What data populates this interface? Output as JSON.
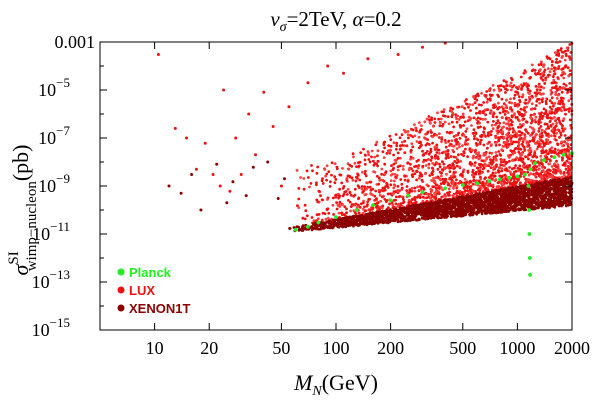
{
  "chart_data": {
    "type": "scatter",
    "title": "v_σ=2TeV, α=0.2",
    "title_parts": {
      "var": "v",
      "sub": "σ",
      "eq1": "=2TeV, ",
      "alpha": "α",
      "eq2": "=0.2"
    },
    "xlabel": "M_N(GeV)",
    "xlabel_parts": {
      "var": "M",
      "sub": "N",
      "unit": "(GeV)"
    },
    "ylabel": "σ^SI_wimp-nucleon (pb)",
    "ylabel_parts": {
      "var": "σ",
      "sup": "SI",
      "sub": "wimp−nucleon",
      "unit": "(pb)"
    },
    "x_scale": "log",
    "y_scale": "log",
    "xlim": [
      5,
      2000
    ],
    "ylim": [
      1e-15,
      0.001
    ],
    "x_ticks": [
      {
        "value": 10,
        "label": "10"
      },
      {
        "value": 20,
        "label": "20"
      },
      {
        "value": 50,
        "label": "50"
      },
      {
        "value": 100,
        "label": "100"
      },
      {
        "value": 200,
        "label": "200"
      },
      {
        "value": 500,
        "label": "500"
      },
      {
        "value": 1000,
        "label": "1000"
      },
      {
        "value": 2000,
        "label": "2000"
      }
    ],
    "y_ticks": [
      {
        "value": 0.001,
        "label": "0.001"
      },
      {
        "value": 1e-05,
        "base": "10",
        "exp": "−5"
      },
      {
        "value": 1e-07,
        "base": "10",
        "exp": "−7"
      },
      {
        "value": 1e-09,
        "base": "10",
        "exp": "−9"
      },
      {
        "value": 1e-11,
        "base": "10",
        "exp": "−11"
      },
      {
        "value": 1e-13,
        "base": "10",
        "exp": "−13"
      },
      {
        "value": 1e-15,
        "base": "10",
        "exp": "−15"
      }
    ],
    "legend_position": "bottom-left",
    "series": [
      {
        "name": "LUX",
        "color": "#ee1111",
        "region": {
          "x_range": [
            60,
            2000
          ],
          "lower_edge": [
            [
              60,
              1.5e-11
            ],
            [
              2000,
              2e-09
            ]
          ],
          "upper_edge": [
            [
              100,
              1e-08
            ],
            [
              1000,
              5e-05
            ],
            [
              2000,
              0.001
            ]
          ]
        },
        "points": [
          [
            10.5,
            0.0003
          ],
          [
            13,
            2.5e-07
          ],
          [
            15,
            1e-07
          ],
          [
            17,
            5e-09
          ],
          [
            19,
            6e-08
          ],
          [
            21,
            3e-09
          ],
          [
            23,
            1e-09
          ],
          [
            24,
            1e-05
          ],
          [
            26,
            6e-10
          ],
          [
            28,
            1e-07
          ],
          [
            30,
            3e-09
          ],
          [
            33,
            1e-06
          ],
          [
            36,
            2e-08
          ],
          [
            40,
            8e-06
          ],
          [
            45,
            3e-07
          ],
          [
            50,
            1e-09
          ],
          [
            55,
            2e-06
          ],
          [
            70,
            2e-05
          ],
          [
            90,
            0.0001
          ],
          [
            110,
            5e-05
          ],
          [
            150,
            0.0002
          ],
          [
            220,
            0.0003
          ],
          [
            300,
            0.0006
          ],
          [
            400,
            0.0009
          ]
        ]
      },
      {
        "name": "XENON1T",
        "color": "#8b0000",
        "region": {
          "x_range": [
            55,
            2000
          ],
          "lower_edge": [
            [
              55,
              1.2e-11
            ],
            [
              2000,
              1.5e-10
            ]
          ],
          "upper_edge": [
            [
              55,
              1.8e-11
            ],
            [
              2000,
              2.5e-09
            ]
          ]
        },
        "points": [
          [
            12,
            1e-09
          ],
          [
            14,
            5e-10
          ],
          [
            16,
            3e-09
          ],
          [
            18,
            1e-10
          ],
          [
            22,
            8e-09
          ],
          [
            25,
            2e-10
          ],
          [
            27,
            1.5e-09
          ],
          [
            32,
            4e-10
          ],
          [
            35,
            6e-09
          ],
          [
            42,
            1e-08
          ],
          [
            48,
            3e-10
          ],
          [
            52,
            2e-09
          ]
        ]
      },
      {
        "name": "Planck",
        "color": "#22ee22",
        "points": [
          [
            60,
            1.5e-11
          ],
          [
            70,
            2e-11
          ],
          [
            80,
            3e-11
          ],
          [
            100,
            5e-11
          ],
          [
            130,
            1e-10
          ],
          [
            160,
            1.6e-10
          ],
          [
            200,
            2.5e-10
          ],
          [
            250,
            4e-10
          ],
          [
            300,
            5.5e-10
          ],
          [
            400,
            8e-10
          ],
          [
            500,
            1.1e-09
          ],
          [
            600,
            1.3e-09
          ],
          [
            700,
            1.6e-09
          ],
          [
            800,
            1.9e-09
          ],
          [
            900,
            2.2e-09
          ],
          [
            1000,
            2.5e-09
          ],
          [
            1100,
            3e-09
          ],
          [
            1150,
            1e-09
          ],
          [
            1160,
            1e-10
          ],
          [
            1165,
            1e-11
          ],
          [
            1170,
            1e-12
          ],
          [
            1175,
            2e-13
          ],
          [
            1180,
            5e-09
          ],
          [
            1250,
            9e-09
          ],
          [
            1400,
            1.2e-08
          ],
          [
            1600,
            1.6e-08
          ],
          [
            1800,
            2e-08
          ],
          [
            2000,
            2.3e-08
          ]
        ]
      }
    ],
    "legend": [
      {
        "label": "Planck",
        "color": "#22ee22"
      },
      {
        "label": "LUX",
        "color": "#ee1111"
      },
      {
        "label": "XENON1T",
        "color": "#8b0000"
      }
    ]
  }
}
